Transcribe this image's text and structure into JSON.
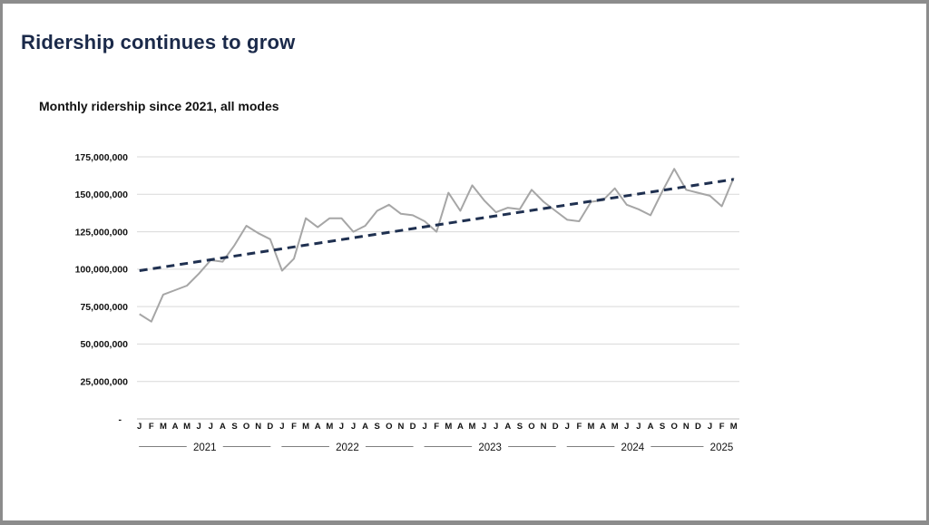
{
  "slide": {
    "title": "Ridership continues to grow"
  },
  "chart_data": {
    "type": "line",
    "title": "Monthly ridership since 2021, all modes",
    "unit": "riders per month",
    "ylim": [
      0,
      175000000
    ],
    "grid": "horizontal",
    "legend": "none",
    "colors": {
      "ridership_line": "#a6a6a6",
      "trend_line": "#1f3050",
      "gridline": "#d9d9d9",
      "axis_line": "#bfbfbf",
      "title_navy": "#1b2a4a",
      "text": "#111111"
    },
    "y_ticks": [
      {
        "value": 175000000,
        "label": "175,000,000"
      },
      {
        "value": 150000000,
        "label": "150,000,000"
      },
      {
        "value": 125000000,
        "label": "125,000,000"
      },
      {
        "value": 100000000,
        "label": "100,000,000"
      },
      {
        "value": 75000000,
        "label": "75,000,000"
      },
      {
        "value": 50000000,
        "label": "50,000,000"
      },
      {
        "value": 25000000,
        "label": "25,000,000"
      },
      {
        "value": 0,
        "label": "-"
      }
    ],
    "years": [
      {
        "year": "2021",
        "months": [
          "J",
          "F",
          "M",
          "A",
          "M",
          "J",
          "J",
          "A",
          "S",
          "O",
          "N",
          "D"
        ],
        "values": [
          70000000,
          65000000,
          83000000,
          86000000,
          89000000,
          97000000,
          106000000,
          105000000,
          116000000,
          129000000,
          124000000,
          120000000
        ]
      },
      {
        "year": "2022",
        "months": [
          "J",
          "F",
          "M",
          "A",
          "M",
          "J",
          "J",
          "A",
          "S",
          "O",
          "N",
          "D"
        ],
        "values": [
          99000000,
          107000000,
          134000000,
          128000000,
          134000000,
          134000000,
          125000000,
          129000000,
          139000000,
          143000000,
          137000000,
          136000000
        ]
      },
      {
        "year": "2023",
        "months": [
          "J",
          "F",
          "M",
          "A",
          "M",
          "J",
          "J",
          "A",
          "S",
          "O",
          "N",
          "D"
        ],
        "values": [
          132000000,
          125000000,
          151000000,
          139000000,
          156000000,
          146000000,
          138000000,
          141000000,
          140000000,
          153000000,
          145000000,
          139000000
        ]
      },
      {
        "year": "2024",
        "months": [
          "J",
          "F",
          "M",
          "A",
          "M",
          "J",
          "J",
          "A",
          "S",
          "O",
          "N",
          "D"
        ],
        "values": [
          133000000,
          132000000,
          145000000,
          146000000,
          154000000,
          143000000,
          140000000,
          136000000,
          152000000,
          167000000,
          153000000,
          151000000
        ]
      },
      {
        "year": "2025",
        "months": [
          "J",
          "F",
          "M"
        ],
        "values": [
          149000000,
          142000000,
          161000000
        ]
      }
    ],
    "series": [
      {
        "name": "Monthly ridership, all modes",
        "style": "solid-gray"
      },
      {
        "name": "Linear trend",
        "style": "dashed-navy",
        "start_value": 99000000,
        "end_value": 160000000
      }
    ]
  }
}
